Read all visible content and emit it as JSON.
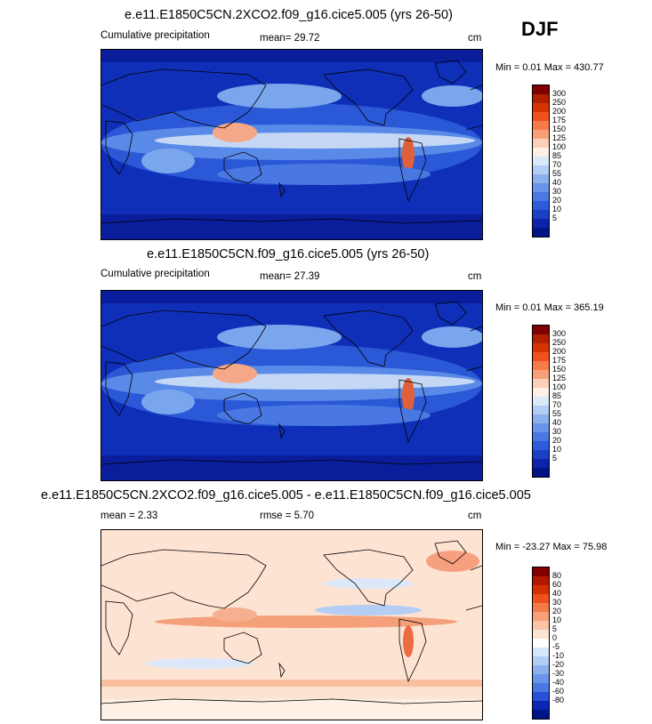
{
  "season": "DJF",
  "panels": [
    {
      "title": "e.e11.E1850C5CN.2XCO2.f09_g16.cice5.005 (yrs 26-50)",
      "left_label": "Cumulative precipitation",
      "center_label": "mean=  29.72",
      "units": "cm",
      "minmax": "Min =   0.01 Max = 430.77",
      "colorbar": {
        "colors": [
          "#800000",
          "#b22000",
          "#d63400",
          "#f05020",
          "#f77a4a",
          "#f9a07a",
          "#fcd0b8",
          "#fef0e4",
          "#dce8fa",
          "#b4cdf4",
          "#8cb0ee",
          "#6a94ea",
          "#4a78e2",
          "#2e5cd8",
          "#1a40c8",
          "#0c24a8",
          "#001488"
        ],
        "labels": [
          "300",
          "250",
          "200",
          "175",
          "150",
          "125",
          "100",
          "85",
          "70",
          "55",
          "40",
          "30",
          "20",
          "10",
          "5"
        ]
      }
    },
    {
      "title": "e.e11.E1850C5CN.f09_g16.cice5.005 (yrs 26-50)",
      "left_label": "Cumulative precipitation",
      "center_label": "mean=  27.39",
      "units": "cm",
      "minmax": "Min =   0.01 Max = 365.19",
      "colorbar": {
        "colors": [
          "#800000",
          "#b22000",
          "#d63400",
          "#f05020",
          "#f77a4a",
          "#f9a07a",
          "#fcd0b8",
          "#fef0e4",
          "#dce8fa",
          "#b4cdf4",
          "#8cb0ee",
          "#6a94ea",
          "#4a78e2",
          "#2e5cd8",
          "#1a40c8",
          "#0c24a8",
          "#001488"
        ],
        "labels": [
          "300",
          "250",
          "200",
          "175",
          "150",
          "125",
          "100",
          "85",
          "70",
          "55",
          "40",
          "30",
          "20",
          "10",
          "5"
        ]
      }
    },
    {
      "title": "e.e11.E1850C5CN.2XCO2.f09_g16.cice5.005 - e.e11.E1850C5CN.f09_g16.cice5.005",
      "left_label": "mean =   2.33",
      "center_label": "rmse =   5.70",
      "units": "cm",
      "minmax": "Min = -23.27 Max =  75.98",
      "colorbar": {
        "colors": [
          "#800000",
          "#b21800",
          "#d63000",
          "#ee5020",
          "#f57a4a",
          "#f9a07a",
          "#fbc4a6",
          "#fde3d2",
          "#ffffff",
          "#d8e6fa",
          "#b4cdf4",
          "#8cb0ee",
          "#6a94ea",
          "#4a78e2",
          "#2a50d6",
          "#0c24b4",
          "#001488"
        ],
        "labels": [
          "80",
          "60",
          "40",
          "30",
          "20",
          "10",
          "5",
          "0",
          "-5",
          "-10",
          "-20",
          "-30",
          "-40",
          "-60",
          "-80"
        ]
      }
    }
  ]
}
